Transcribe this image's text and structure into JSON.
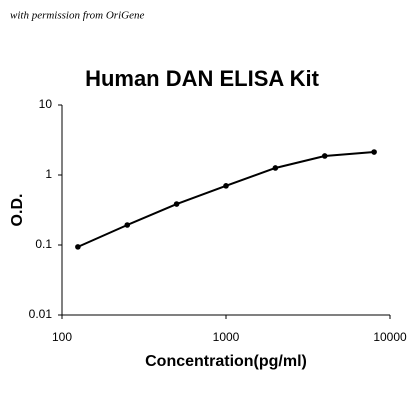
{
  "note": "with permission from OriGene",
  "chart_data": {
    "type": "line",
    "title": "Human DAN ELISA Kit",
    "x_label": "Concentration(pg/ml)",
    "y_label": "O.D.",
    "x": [
      125,
      250,
      500,
      1000,
      2000,
      4000,
      8000
    ],
    "series": [
      {
        "color": "#000000",
        "values": [
          0.094,
          0.193,
          0.385,
          0.7,
          1.26,
          1.87,
          2.13
        ]
      }
    ],
    "xlim": [
      100,
      10000
    ],
    "xticks": [
      100,
      1000,
      10000
    ],
    "ylim": [
      0.01,
      10
    ],
    "yticks": [
      0.01,
      0.1,
      1,
      10
    ],
    "xscale": "log",
    "yscale": "log"
  }
}
